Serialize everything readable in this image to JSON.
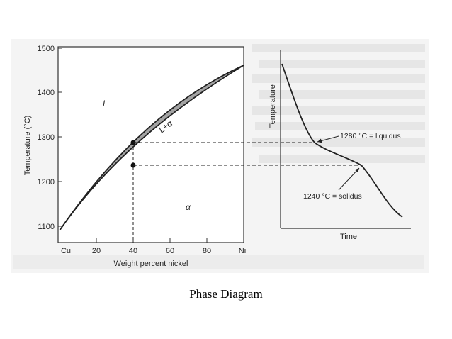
{
  "phase_diagram": {
    "y_axis_label": "Temperature (°C)",
    "y_ticks": [
      "1500",
      "1400",
      "1300",
      "1200",
      "1100"
    ],
    "x_axis_label": "Weight percent nickel",
    "x_ticks": [
      "Cu",
      "20",
      "40",
      "60",
      "80",
      "Ni"
    ],
    "region_liquid": "L",
    "region_two_phase": "L+α",
    "region_solid": "α"
  },
  "cooling_curve": {
    "y_axis_label": "Temperature",
    "x_axis_label": "Time",
    "liquidus_note": "1280 °C = liquidus",
    "solidus_note": "1240 °C = solidus"
  },
  "caption": "Phase Diagram",
  "colors": {
    "two_phase_fill": "#a3a3a3",
    "line": "#222222",
    "panel_bg": "#f1f1f1"
  }
}
